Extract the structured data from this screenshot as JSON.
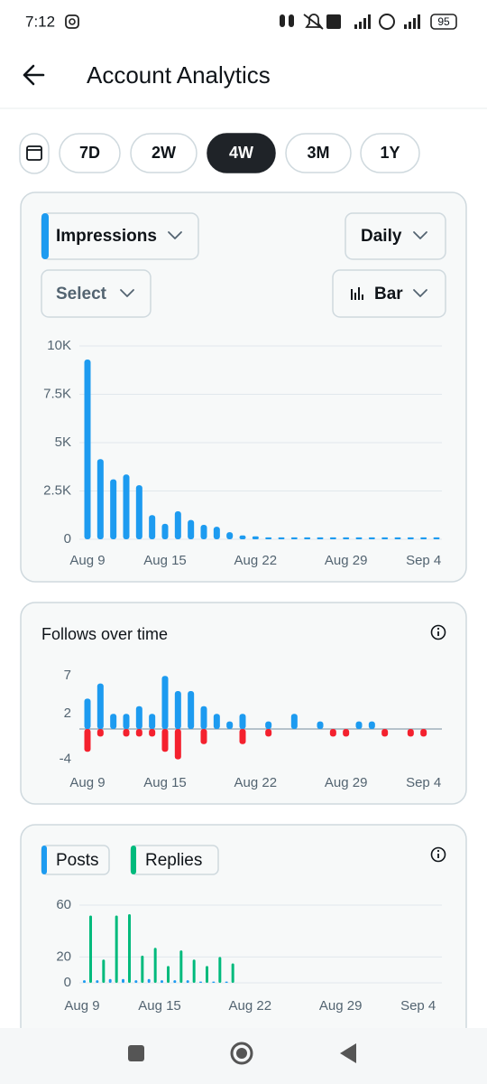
{
  "status_bar": {
    "time": "7:12",
    "battery": "95"
  },
  "header": {
    "title": "Account Analytics"
  },
  "periods": {
    "options": [
      "7D",
      "2W",
      "4W",
      "3M",
      "1Y"
    ],
    "selected_index": 2
  },
  "impressions_controls": {
    "metric": "Impressions",
    "interval": "Daily",
    "compare": "Select",
    "chart_style": "Bar"
  },
  "chart_data": [
    {
      "type": "bar",
      "categories": [
        "Aug 9",
        null,
        null,
        null,
        null,
        null,
        "Aug 15",
        null,
        null,
        null,
        null,
        null,
        null,
        "Aug 22",
        null,
        null,
        null,
        null,
        null,
        null,
        "Aug 29",
        null,
        null,
        null,
        null,
        null,
        "Sep 4",
        null
      ],
      "values": [
        9300,
        4150,
        3100,
        3350,
        2800,
        1250,
        800,
        1450,
        1000,
        750,
        650,
        370,
        200,
        150,
        100,
        100,
        100,
        100,
        100,
        100,
        100,
        100,
        100,
        100,
        100,
        100,
        100,
        100
      ],
      "color": "#1d9bf0",
      "ylim": [
        0,
        10000
      ],
      "yticks": [
        0,
        {
          "value": 2500,
          "label": "2.5K"
        },
        {
          "value": 5000,
          "label": "5K"
        },
        {
          "value": 7500,
          "label": "7.5K"
        },
        {
          "value": 10000,
          "label": "10K"
        }
      ],
      "grid": true
    },
    {
      "type": "bar",
      "title": "Follows over time",
      "categories": [
        "Aug 9",
        null,
        null,
        null,
        null,
        null,
        "Aug 15",
        null,
        null,
        null,
        null,
        null,
        null,
        "Aug 22",
        null,
        null,
        null,
        null,
        null,
        null,
        "Aug 29",
        null,
        null,
        null,
        null,
        null,
        "Sep 4",
        null
      ],
      "series": [
        {
          "color": "#1d9bf0",
          "values": [
            4,
            6,
            2,
            2,
            3,
            2,
            7,
            5,
            5,
            3,
            2,
            1,
            2,
            0,
            1,
            0,
            2,
            0,
            1,
            0,
            0,
            1,
            1,
            0,
            0,
            0,
            0,
            0
          ]
        },
        {
          "color": "#f4212e",
          "values": [
            -3,
            -1,
            0,
            -1,
            -1,
            -1,
            -3,
            -4,
            0,
            -2,
            0,
            0,
            -2,
            0,
            -1,
            0,
            0,
            0,
            0,
            -1,
            -1,
            0,
            0,
            -1,
            0,
            -1,
            -1,
            0
          ]
        }
      ],
      "ylim": [
        -5,
        8
      ],
      "yticks": [
        -4,
        2,
        7
      ],
      "grid": false
    },
    {
      "type": "bar",
      "categories": [
        "Aug 9",
        null,
        null,
        null,
        null,
        null,
        "Aug 15",
        null,
        null,
        null,
        null,
        null,
        null,
        "Aug 22",
        null,
        null,
        null,
        null,
        null,
        null,
        "Aug 29",
        null,
        null,
        null,
        null,
        null,
        "Sep 4",
        null
      ],
      "series": [
        {
          "name": "Posts",
          "color": "#1d9bf0",
          "values": [
            2,
            2,
            3,
            3,
            2,
            3,
            2,
            2,
            2,
            1,
            1,
            1,
            0,
            0,
            0,
            0,
            0,
            0,
            0,
            0,
            0,
            0,
            0,
            0,
            0,
            0,
            0,
            0
          ]
        },
        {
          "name": "Replies",
          "color": "#00ba7c",
          "values": [
            52,
            18,
            52,
            53,
            21,
            27,
            13,
            25,
            18,
            13,
            20,
            15,
            0,
            0,
            0,
            0,
            0,
            0,
            0,
            0,
            0,
            0,
            0,
            0,
            0,
            0,
            0,
            0
          ]
        }
      ],
      "ylim": [
        0,
        60
      ],
      "yticks": [
        0,
        20,
        60
      ],
      "grid": true
    }
  ]
}
